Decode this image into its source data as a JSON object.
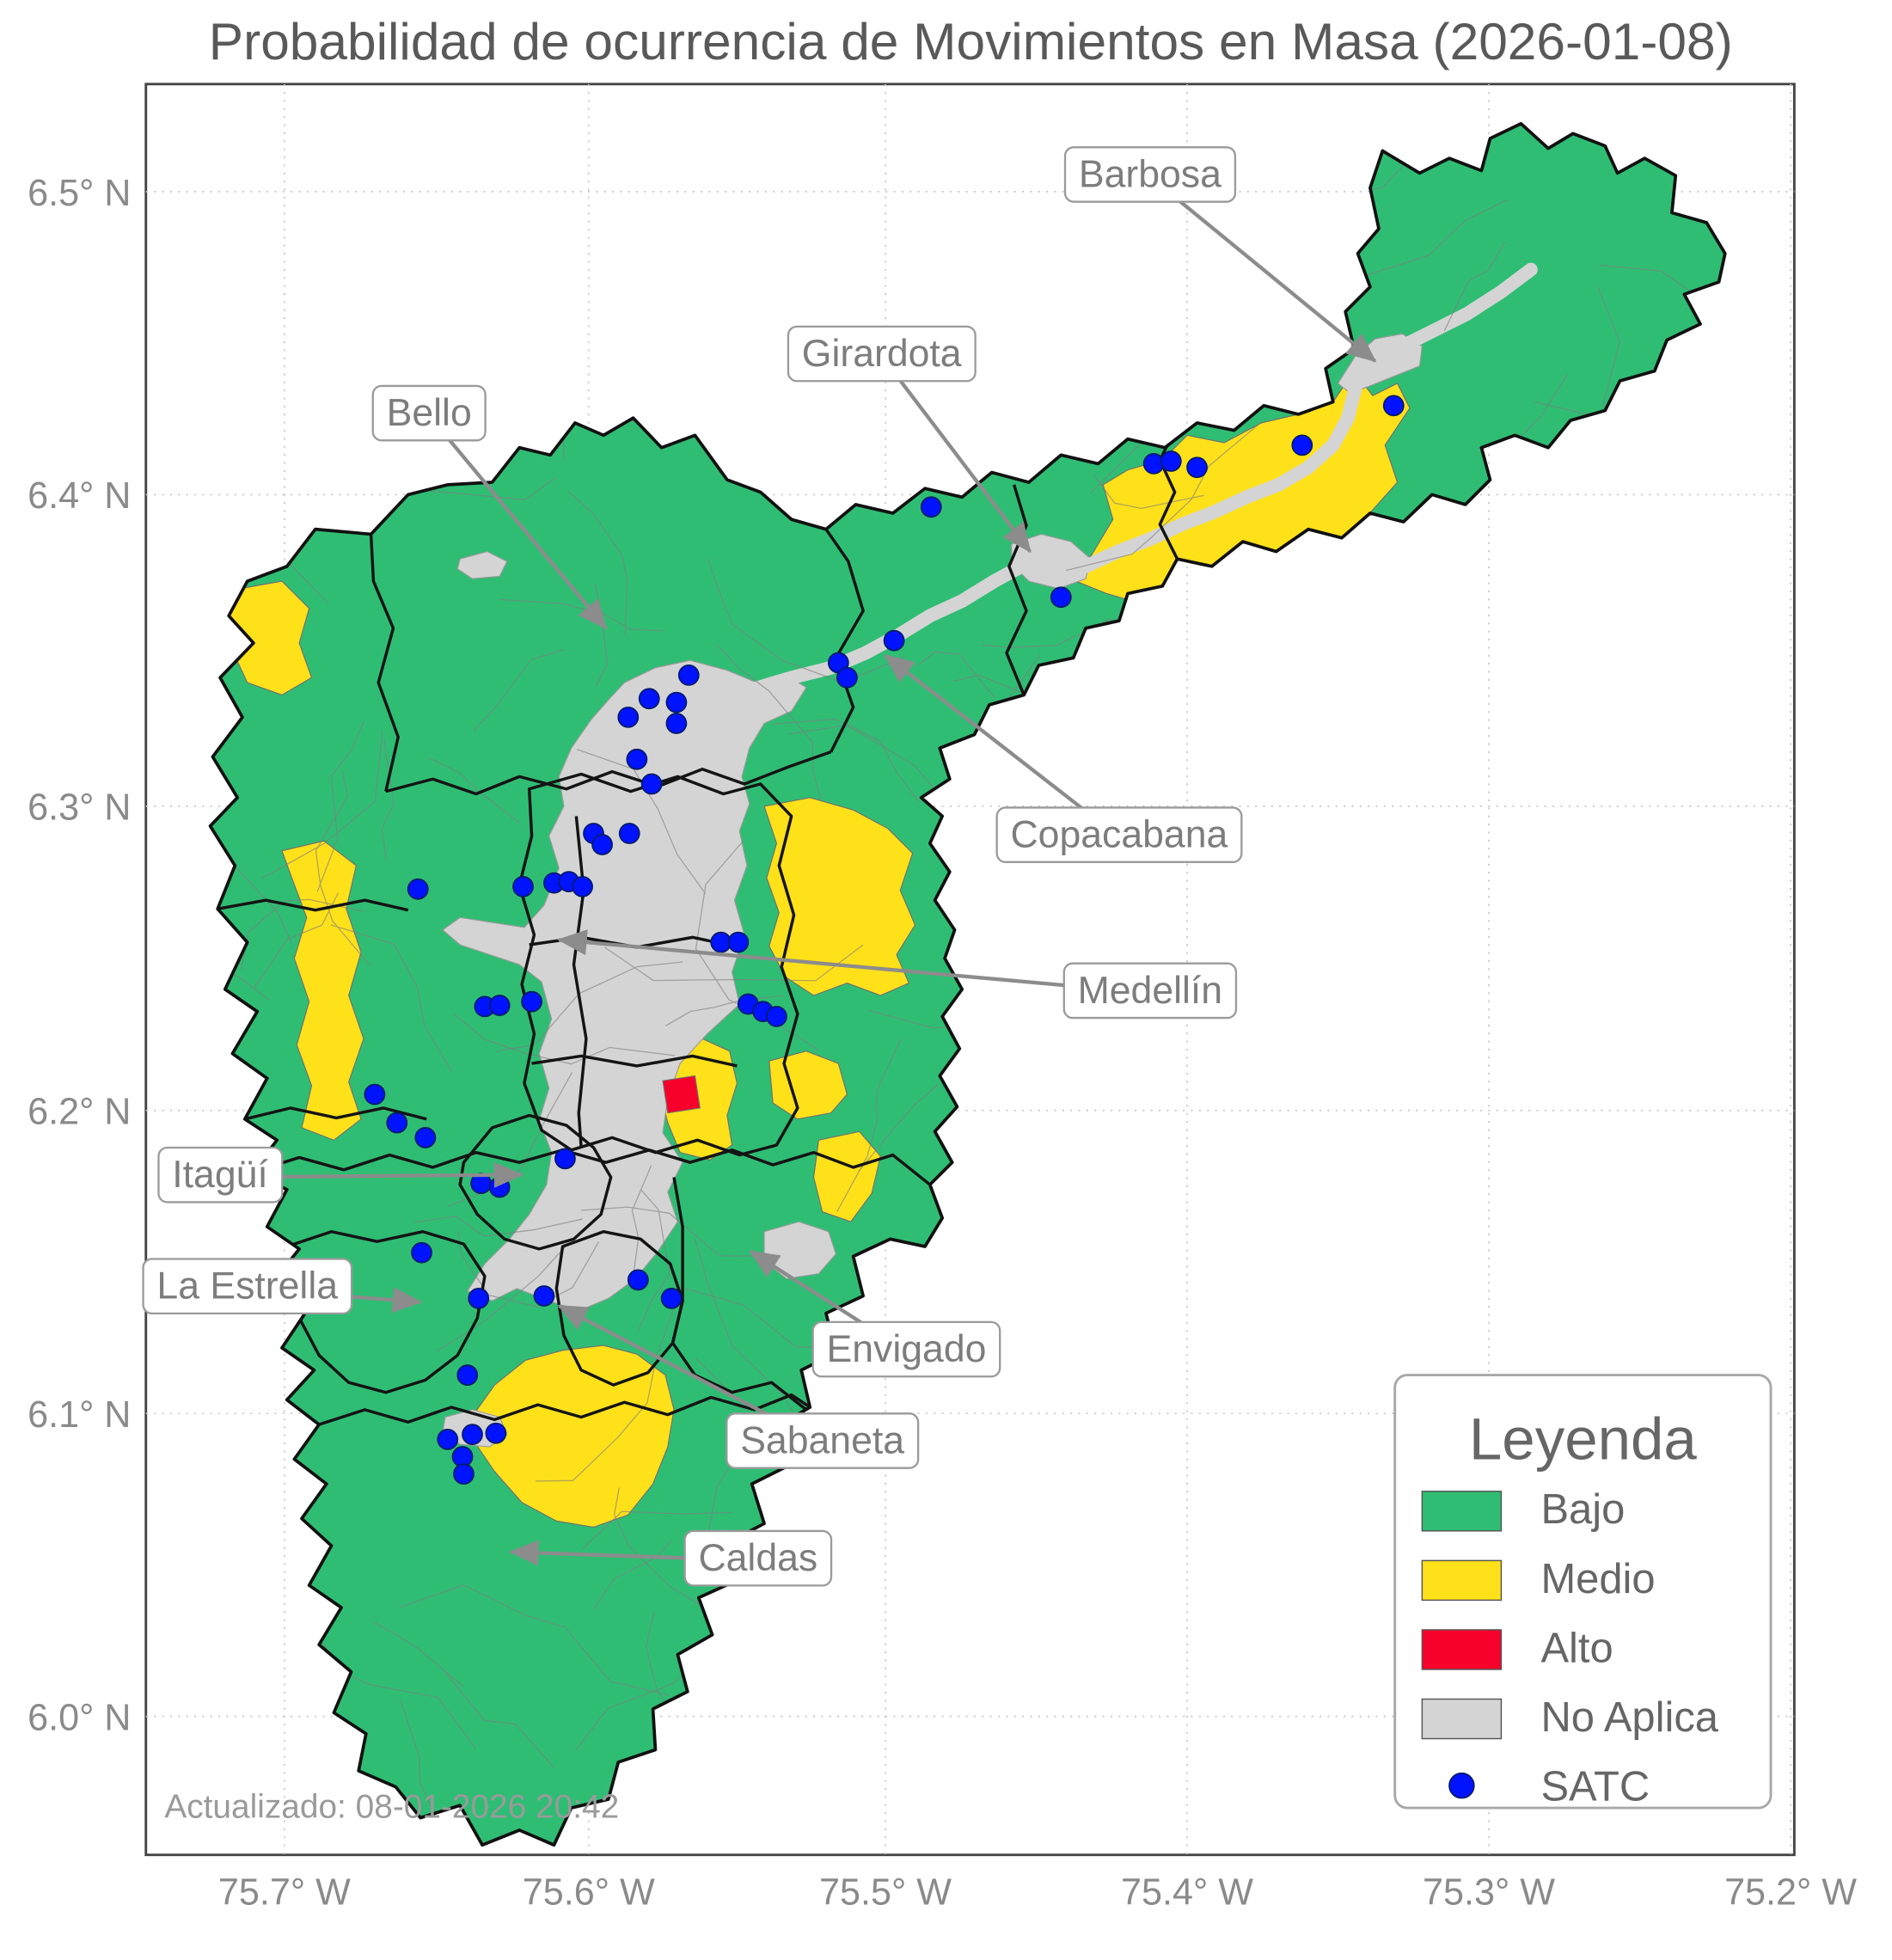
{
  "title": "Probabilidad de ocurrencia de Movimientos en Masa (2026-01-08)",
  "footer": "Actualizado: 08-01-2026 20:42",
  "axes": {
    "x_ticks": [
      "75.7° W",
      "75.6° W",
      "75.5° W",
      "75.4° W",
      "75.3° W",
      "75.2° W"
    ],
    "y_ticks": [
      "6.5° N",
      "6.4° N",
      "6.3° N",
      "6.2° N",
      "6.1° N",
      "6.0° N"
    ]
  },
  "legend": {
    "title": "Leyenda",
    "items": [
      {
        "label": "Bajo",
        "color": "#2fbd74",
        "marker": "patch"
      },
      {
        "label": "Medio",
        "color": "#ffe11a",
        "marker": "patch"
      },
      {
        "label": "Alto",
        "color": "#f7002b",
        "marker": "patch"
      },
      {
        "label": "No Aplica",
        "color": "#d4d4d4",
        "marker": "patch"
      },
      {
        "label": "SATC",
        "color": "#0013ff",
        "marker": "point"
      }
    ]
  },
  "map": {
    "risk_colors": {
      "bajo": "#2fbd74",
      "medio": "#ffe11a",
      "alto": "#f7002b",
      "no_aplica": "#d4d4d4"
    },
    "municipality_labels": [
      {
        "label": "Barbosa",
        "lx": 930,
        "ly": 143,
        "tx": 1112,
        "ty": 292
      },
      {
        "label": "Girardota",
        "lx": 713,
        "ly": 288,
        "tx": 833,
        "ty": 446
      },
      {
        "label": "Bello",
        "lx": 347,
        "ly": 336,
        "tx": 490,
        "ty": 508
      },
      {
        "label": "Copacabana",
        "lx": 905,
        "ly": 677,
        "tx": 716,
        "ty": 530
      },
      {
        "label": "Medellín",
        "lx": 930,
        "ly": 803,
        "tx": 452,
        "ty": 760
      },
      {
        "label": "Itagüí",
        "lx": 178,
        "ly": 952,
        "tx": 422,
        "ty": 950
      },
      {
        "label": "La Estrella",
        "lx": 200,
        "ly": 1042,
        "tx": 340,
        "ty": 1053
      },
      {
        "label": "Envigado",
        "lx": 733,
        "ly": 1093,
        "tx": 607,
        "ty": 1012
      },
      {
        "label": "Sabaneta",
        "lx": 665,
        "ly": 1167,
        "tx": 452,
        "ty": 1056
      },
      {
        "label": "Caldas",
        "lx": 613,
        "ly": 1262,
        "tx": 413,
        "ty": 1255
      }
    ],
    "satc_points": [
      [
        1127,
        328
      ],
      [
        1053,
        360
      ],
      [
        933,
        375
      ],
      [
        947,
        373
      ],
      [
        968,
        378
      ],
      [
        753,
        410
      ],
      [
        858,
        483
      ],
      [
        723,
        518
      ],
      [
        678,
        536
      ],
      [
        685,
        548
      ],
      [
        557,
        546
      ],
      [
        525,
        565
      ],
      [
        547,
        568
      ],
      [
        508,
        580
      ],
      [
        547,
        585
      ],
      [
        515,
        614
      ],
      [
        527,
        634
      ],
      [
        480,
        674
      ],
      [
        487,
        683
      ],
      [
        509,
        674
      ],
      [
        338,
        719
      ],
      [
        423,
        717
      ],
      [
        448,
        714
      ],
      [
        460,
        713
      ],
      [
        471,
        717
      ],
      [
        583,
        762
      ],
      [
        597,
        762
      ],
      [
        605,
        812
      ],
      [
        617,
        818
      ],
      [
        628,
        822
      ],
      [
        392,
        814
      ],
      [
        404,
        813
      ],
      [
        430,
        810
      ],
      [
        303,
        885
      ],
      [
        321,
        908
      ],
      [
        344,
        920
      ],
      [
        457,
        937
      ],
      [
        389,
        957
      ],
      [
        404,
        960
      ],
      [
        341,
        1013
      ],
      [
        387,
        1050
      ],
      [
        440,
        1048
      ],
      [
        516,
        1035
      ],
      [
        543,
        1050
      ],
      [
        378,
        1112
      ],
      [
        362,
        1164
      ],
      [
        382,
        1160
      ],
      [
        401,
        1159
      ],
      [
        374,
        1178
      ],
      [
        375,
        1192
      ]
    ]
  }
}
